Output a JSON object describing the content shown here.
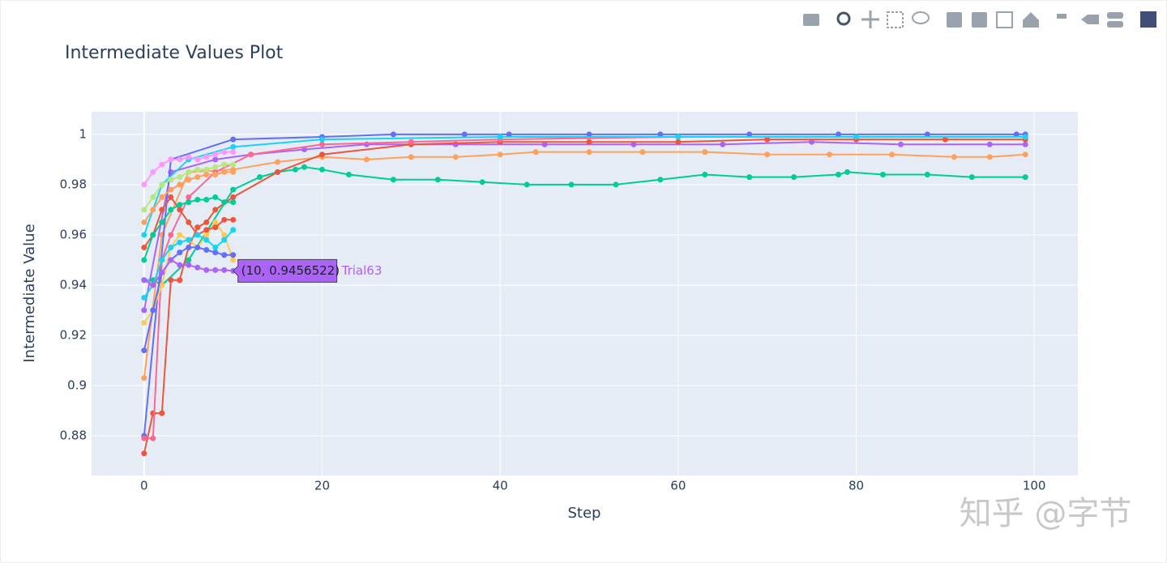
{
  "chart_data": {
    "type": "line",
    "title": "Intermediate Values Plot",
    "x_label": "Step",
    "y_label": "Intermediate Value",
    "xlim": [
      -5.9,
      104.9
    ],
    "xticks": [
      0,
      20,
      40,
      60,
      80,
      100
    ],
    "ylim": [
      0.8642,
      1.009
    ],
    "yticks": [
      0.88,
      0.9,
      0.92,
      0.94,
      0.96,
      0.98,
      1
    ],
    "grid": true,
    "background": "#e5ecf6",
    "series": [
      {
        "color": "#00cc96",
        "x": [
          0,
          1,
          2,
          5,
          10,
          13,
          15,
          17,
          18,
          20,
          23,
          28,
          33,
          38,
          43,
          48,
          53,
          58,
          63,
          68,
          73,
          78,
          79,
          83,
          88,
          93,
          99
        ],
        "values": [
          0.942,
          0.942,
          0.94,
          0.95,
          0.978,
          0.983,
          0.985,
          0.986,
          0.987,
          0.986,
          0.984,
          0.982,
          0.982,
          0.981,
          0.98,
          0.98,
          0.98,
          0.982,
          0.984,
          0.983,
          0.983,
          0.984,
          0.985,
          0.984,
          0.984,
          0.983,
          0.983
        ]
      },
      {
        "color": "#ffa15a",
        "x": [
          0,
          2,
          5,
          10,
          15,
          20,
          25,
          30,
          35,
          40,
          44,
          50,
          56,
          63,
          70,
          77,
          84,
          91,
          95,
          99
        ],
        "values": [
          0.903,
          0.96,
          0.985,
          0.986,
          0.989,
          0.991,
          0.99,
          0.991,
          0.991,
          0.992,
          0.993,
          0.993,
          0.993,
          0.993,
          0.992,
          0.992,
          0.992,
          0.991,
          0.991,
          0.992
        ]
      },
      {
        "color": "#ab63fa",
        "x": [
          0,
          3,
          8,
          12,
          18,
          25,
          35,
          45,
          55,
          65,
          75,
          85,
          95,
          99
        ],
        "values": [
          0.93,
          0.985,
          0.99,
          0.992,
          0.994,
          0.996,
          0.996,
          0.996,
          0.996,
          0.996,
          0.997,
          0.996,
          0.996,
          0.996
        ]
      },
      {
        "color": "#636efa",
        "x": [
          0,
          3,
          10,
          20,
          28,
          36,
          41,
          50,
          58,
          68,
          78,
          88,
          98,
          99
        ],
        "values": [
          0.88,
          0.99,
          0.998,
          0.999,
          1.0,
          1.0,
          1.0,
          1.0,
          1.0,
          1.0,
          1.0,
          1.0,
          1.0,
          1.0
        ]
      },
      {
        "color": "#ef553b",
        "x": [
          0,
          1,
          2,
          3,
          4,
          5,
          6,
          7,
          8,
          10,
          15,
          20,
          30,
          40,
          50,
          60,
          70,
          80,
          90,
          99
        ],
        "values": [
          0.873,
          0.889,
          0.889,
          0.942,
          0.942,
          0.955,
          0.963,
          0.965,
          0.97,
          0.975,
          0.985,
          0.992,
          0.996,
          0.997,
          0.997,
          0.997,
          0.998,
          0.998,
          0.998,
          0.998
        ]
      },
      {
        "color": "#ff6692",
        "x": [
          0,
          1,
          2,
          3,
          5,
          8,
          12,
          20,
          30,
          40,
          60,
          80,
          99
        ],
        "values": [
          0.879,
          0.879,
          0.95,
          0.96,
          0.975,
          0.985,
          0.992,
          0.996,
          0.997,
          0.998,
          0.999,
          0.999,
          0.999
        ]
      },
      {
        "color": "#19d3f3",
        "x": [
          0,
          2,
          5,
          10,
          20,
          40,
          60,
          80,
          99
        ],
        "values": [
          0.96,
          0.98,
          0.99,
          0.995,
          0.998,
          0.999,
          0.999,
          0.999,
          0.999
        ]
      },
      {
        "color": "#fecb52",
        "x": [
          0,
          1,
          2,
          3,
          4,
          5,
          6,
          7,
          8,
          9,
          10
        ],
        "values": [
          0.925,
          0.93,
          0.94,
          0.955,
          0.96,
          0.958,
          0.955,
          0.96,
          0.965,
          0.96,
          0.95
        ]
      },
      {
        "color": "#636efa",
        "x": [
          0,
          1,
          2,
          3,
          4,
          5,
          6,
          7,
          8,
          9,
          10
        ],
        "values": [
          0.914,
          0.93,
          0.945,
          0.95,
          0.953,
          0.955,
          0.955,
          0.954,
          0.953,
          0.952,
          0.952
        ]
      },
      {
        "color": "#ef553b",
        "x": [
          0,
          1,
          2,
          3,
          4,
          5,
          6,
          7,
          8,
          9,
          10
        ],
        "values": [
          0.955,
          0.96,
          0.97,
          0.975,
          0.97,
          0.965,
          0.96,
          0.962,
          0.963,
          0.966,
          0.966
        ]
      },
      {
        "color": "#00cc96",
        "x": [
          0,
          1,
          2,
          3,
          4,
          5,
          6,
          7,
          8,
          9,
          10
        ],
        "values": [
          0.95,
          0.96,
          0.965,
          0.97,
          0.972,
          0.973,
          0.974,
          0.974,
          0.975,
          0.973,
          0.973
        ]
      },
      {
        "color": "#b6e880",
        "x": [
          0,
          1,
          2,
          3,
          4,
          5,
          6,
          7,
          8,
          9,
          10
        ],
        "values": [
          0.97,
          0.975,
          0.98,
          0.982,
          0.983,
          0.985,
          0.986,
          0.986,
          0.987,
          0.988,
          0.988
        ]
      },
      {
        "color": "#ff97ff",
        "x": [
          0,
          1,
          2,
          3,
          4,
          5,
          6,
          7,
          8,
          9,
          10
        ],
        "values": [
          0.98,
          0.985,
          0.988,
          0.99,
          0.99,
          0.991,
          0.99,
          0.991,
          0.992,
          0.993,
          0.993
        ]
      },
      {
        "color": "#19d3f3",
        "x": [
          0,
          1,
          2,
          3,
          4,
          5,
          6,
          7,
          8,
          9,
          10
        ],
        "values": [
          0.935,
          0.94,
          0.95,
          0.955,
          0.957,
          0.958,
          0.96,
          0.958,
          0.955,
          0.958,
          0.962
        ]
      },
      {
        "color": "#ffa15a",
        "x": [
          0,
          1,
          2,
          3,
          4,
          5,
          6,
          7,
          8,
          9,
          10
        ],
        "values": [
          0.965,
          0.97,
          0.975,
          0.978,
          0.98,
          0.982,
          0.983,
          0.984,
          0.984,
          0.985,
          0.985
        ]
      },
      {
        "name": "Trial63",
        "color": "#ab63fa",
        "x": [
          0,
          1,
          2,
          3,
          4,
          5,
          6,
          7,
          8,
          9,
          10
        ],
        "values": [
          0.942,
          0.94,
          0.945,
          0.95,
          0.948,
          0.948,
          0.947,
          0.946,
          0.946,
          0.946,
          0.9456522
        ]
      }
    ],
    "hover": {
      "series": 15,
      "point": 10,
      "text": "(10, 0.9456522)"
    },
    "watermark": "知乎 @字节"
  }
}
